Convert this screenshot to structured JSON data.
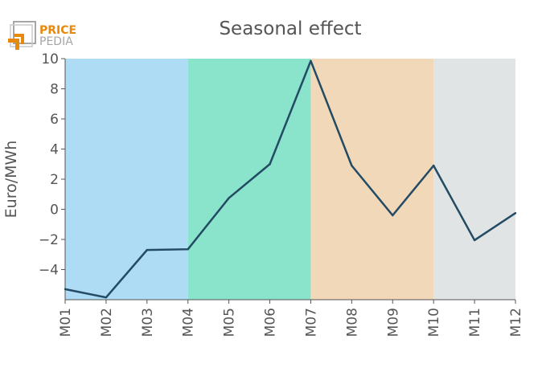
{
  "logo": {
    "line1": "PRICE",
    "line2": "PEDIA",
    "color_orange": "#e8890c",
    "color_grey": "#a6a6a6"
  },
  "chart_data": {
    "type": "line",
    "title": "Seasonal effect",
    "xlabel": "",
    "ylabel": "Euro/MWh",
    "categories": [
      "M01",
      "M02",
      "M03",
      "M04",
      "M05",
      "M06",
      "M07",
      "M08",
      "M09",
      "M10",
      "M11",
      "M12"
    ],
    "values": [
      -5.3,
      -5.85,
      -2.7,
      -2.65,
      0.75,
      3.0,
      9.85,
      2.9,
      -0.4,
      2.9,
      -2.05,
      -0.25
    ],
    "ylim": [
      -6,
      10
    ],
    "yticks": [
      -4,
      -2,
      0,
      2,
      4,
      6,
      8,
      10
    ],
    "ytick_labels": [
      "−4",
      "−2",
      "0",
      "2",
      "4",
      "6",
      "8",
      "10"
    ],
    "grid": false,
    "line_color": "#234b63",
    "bands": [
      {
        "from": "M01",
        "to": "M04",
        "color": "#aedcf5"
      },
      {
        "from": "M04",
        "to": "M07",
        "color": "#8ae3cb"
      },
      {
        "from": "M07",
        "to": "M10",
        "color": "#f1d8b9"
      },
      {
        "from": "M10",
        "to": "M12",
        "color": "#e0e4e4"
      }
    ]
  }
}
